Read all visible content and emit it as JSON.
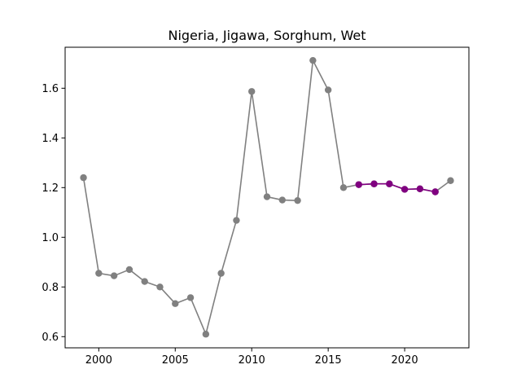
{
  "chart_data": {
    "type": "line",
    "title": "Nigeria, Jigawa, Sorghum, Wet",
    "xlabel": "",
    "ylabel": "",
    "xlim": [
      1997.8,
      2024.2
    ],
    "ylim": [
      0.555,
      1.765
    ],
    "xticks": [
      2000,
      2005,
      2010,
      2015,
      2020
    ],
    "yticks": [
      0.6,
      0.8,
      1.0,
      1.2,
      1.4,
      1.6
    ],
    "ytick_labels": [
      "0.6",
      "0.8",
      "1.0",
      "1.2",
      "1.4",
      "1.6"
    ],
    "grid": false,
    "series": [
      {
        "color": "#808080",
        "x": [
          1999,
          2000,
          2001,
          2002,
          2003,
          2004,
          2005,
          2006,
          2007,
          2008,
          2009,
          2010,
          2011,
          2012,
          2013,
          2014,
          2015,
          2016,
          2017,
          2018,
          2019,
          2020,
          2021,
          2022,
          2023
        ],
        "y": [
          1.24,
          0.855,
          0.845,
          0.87,
          0.822,
          0.8,
          0.733,
          0.757,
          0.61,
          0.855,
          1.068,
          1.587,
          1.163,
          1.15,
          1.148,
          1.712,
          1.593,
          1.2,
          1.212,
          1.215,
          1.215,
          1.193,
          1.195,
          1.183,
          1.228
        ]
      },
      {
        "color": "#800080",
        "x": [
          2017,
          2018,
          2019,
          2020,
          2021,
          2022
        ],
        "y": [
          1.212,
          1.215,
          1.215,
          1.193,
          1.195,
          1.183
        ]
      }
    ]
  }
}
